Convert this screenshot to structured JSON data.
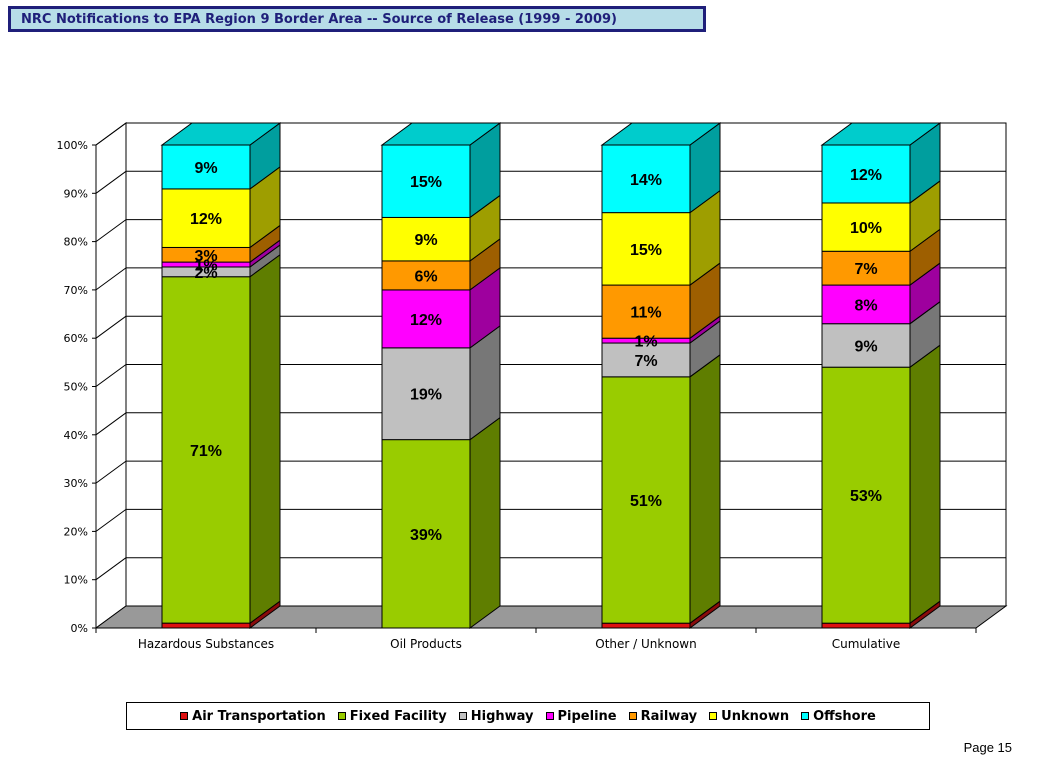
{
  "header": {
    "title": "NRC Notifications to EPA Region 9 Border Area  -- Source of Release (1999 - 2009)"
  },
  "chart_data": {
    "type": "bar",
    "stacked": true,
    "three_d": true,
    "categories": [
      "Hazardous Substances",
      "Oil Products",
      "Other / Unknown",
      "Cumulative"
    ],
    "y_ticks": [
      "0%",
      "10%",
      "20%",
      "30%",
      "40%",
      "50%",
      "60%",
      "70%",
      "80%",
      "90%",
      "100%"
    ],
    "ylim": [
      0,
      100
    ],
    "grid": true,
    "legend_position": "bottom",
    "series": [
      {
        "name": "Air Transportation",
        "color": "#dd1111",
        "values": [
          1,
          0,
          1,
          1
        ],
        "labels": [
          "",
          "",
          "",
          ""
        ]
      },
      {
        "name": "Fixed Facility",
        "color": "#99cc00",
        "values": [
          71,
          39,
          51,
          53
        ],
        "labels": [
          "71%",
          "39%",
          "51%",
          "53%"
        ]
      },
      {
        "name": "Highway",
        "color": "#c0c0c0",
        "values": [
          2,
          19,
          7,
          9
        ],
        "labels": [
          "2%",
          "19%",
          "7%",
          "9%"
        ]
      },
      {
        "name": "Pipeline",
        "color": "#ff00ff",
        "values": [
          1,
          12,
          1,
          8
        ],
        "labels": [
          "1%",
          "12%",
          "1%",
          "8%"
        ]
      },
      {
        "name": "Railway",
        "color": "#ff9900",
        "values": [
          3,
          6,
          11,
          7
        ],
        "labels": [
          "3%",
          "6%",
          "11%",
          "7%"
        ]
      },
      {
        "name": "Unknown",
        "color": "#ffff00",
        "values": [
          12,
          9,
          15,
          10
        ],
        "labels": [
          "12%",
          "9%",
          "15%",
          "10%"
        ]
      },
      {
        "name": "Offshore",
        "color": "#00ffff",
        "values": [
          9,
          15,
          14,
          12
        ],
        "labels": [
          "9%",
          "15%",
          "14%",
          "12%"
        ]
      }
    ]
  },
  "footer": {
    "page": "Page 15"
  }
}
